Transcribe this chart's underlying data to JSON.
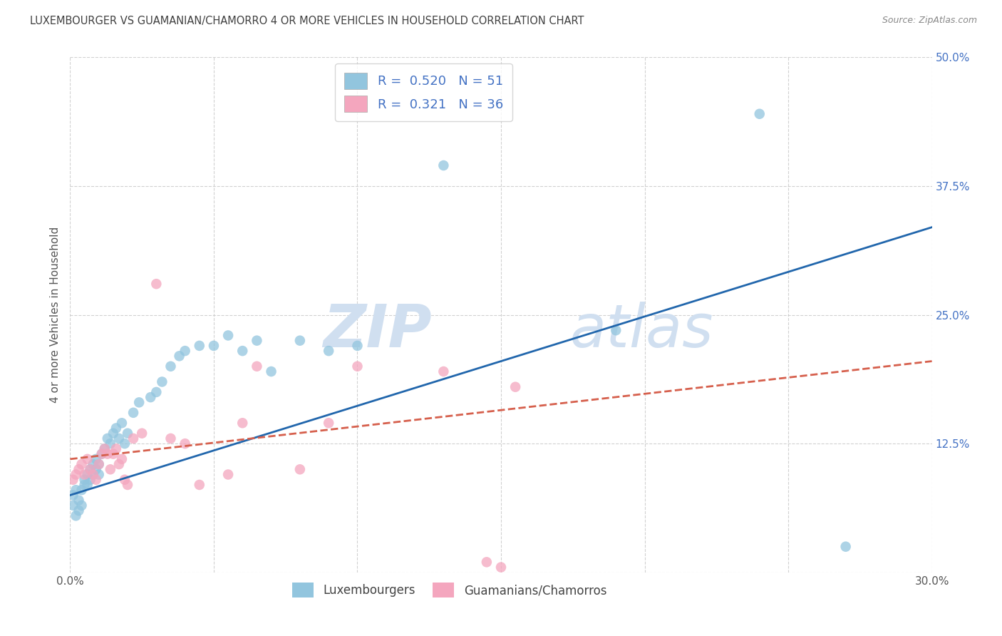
{
  "title": "LUXEMBOURGER VS GUAMANIAN/CHAMORRO 4 OR MORE VEHICLES IN HOUSEHOLD CORRELATION CHART",
  "source": "Source: ZipAtlas.com",
  "ylabel": "4 or more Vehicles in Household",
  "xlim": [
    0.0,
    0.3
  ],
  "ylim": [
    0.0,
    0.5
  ],
  "xticks": [
    0.0,
    0.05,
    0.1,
    0.15,
    0.2,
    0.25,
    0.3
  ],
  "yticks": [
    0.0,
    0.125,
    0.25,
    0.375,
    0.5
  ],
  "legend_blue_R": "0.520",
  "legend_blue_N": "51",
  "legend_pink_R": "0.321",
  "legend_pink_N": "36",
  "blue_scatter_x": [
    0.001,
    0.001,
    0.002,
    0.002,
    0.003,
    0.003,
    0.004,
    0.004,
    0.005,
    0.005,
    0.006,
    0.006,
    0.007,
    0.007,
    0.008,
    0.008,
    0.009,
    0.009,
    0.01,
    0.01,
    0.011,
    0.012,
    0.013,
    0.014,
    0.015,
    0.016,
    0.017,
    0.018,
    0.019,
    0.02,
    0.022,
    0.024,
    0.028,
    0.03,
    0.032,
    0.035,
    0.038,
    0.04,
    0.045,
    0.05,
    0.055,
    0.06,
    0.065,
    0.07,
    0.08,
    0.09,
    0.1,
    0.13,
    0.19,
    0.24,
    0.27
  ],
  "blue_scatter_y": [
    0.065,
    0.075,
    0.055,
    0.08,
    0.06,
    0.07,
    0.065,
    0.08,
    0.085,
    0.09,
    0.095,
    0.085,
    0.1,
    0.09,
    0.095,
    0.105,
    0.1,
    0.11,
    0.095,
    0.105,
    0.115,
    0.12,
    0.13,
    0.125,
    0.135,
    0.14,
    0.13,
    0.145,
    0.125,
    0.135,
    0.155,
    0.165,
    0.17,
    0.175,
    0.185,
    0.2,
    0.21,
    0.215,
    0.22,
    0.22,
    0.23,
    0.215,
    0.225,
    0.195,
    0.225,
    0.215,
    0.22,
    0.395,
    0.235,
    0.445,
    0.025
  ],
  "pink_scatter_x": [
    0.001,
    0.002,
    0.003,
    0.004,
    0.005,
    0.006,
    0.007,
    0.008,
    0.009,
    0.01,
    0.011,
    0.012,
    0.013,
    0.014,
    0.015,
    0.016,
    0.017,
    0.018,
    0.019,
    0.02,
    0.022,
    0.025,
    0.03,
    0.035,
    0.04,
    0.045,
    0.055,
    0.06,
    0.065,
    0.08,
    0.09,
    0.1,
    0.13,
    0.145,
    0.15,
    0.155
  ],
  "pink_scatter_y": [
    0.09,
    0.095,
    0.1,
    0.105,
    0.095,
    0.11,
    0.1,
    0.095,
    0.09,
    0.105,
    0.115,
    0.12,
    0.115,
    0.1,
    0.115,
    0.12,
    0.105,
    0.11,
    0.09,
    0.085,
    0.13,
    0.135,
    0.28,
    0.13,
    0.125,
    0.085,
    0.095,
    0.145,
    0.2,
    0.1,
    0.145,
    0.2,
    0.195,
    0.01,
    0.005,
    0.18
  ],
  "blue_line_x": [
    0.0,
    0.3
  ],
  "blue_line_y": [
    0.075,
    0.335
  ],
  "pink_line_x": [
    0.0,
    0.3
  ],
  "pink_line_y": [
    0.11,
    0.205
  ],
  "blue_scatter_color": "#92c5de",
  "pink_scatter_color": "#f4a6be",
  "blue_line_color": "#2166ac",
  "pink_line_color": "#d6604d",
  "legend_text_color": "#4472c4",
  "watermark_color": "#d0dff0",
  "background_color": "#ffffff",
  "grid_color": "#cccccc",
  "title_color": "#404040",
  "source_color": "#888888",
  "ylabel_color": "#555555",
  "ytick_color": "#4472c4",
  "xtick_color": "#555555"
}
